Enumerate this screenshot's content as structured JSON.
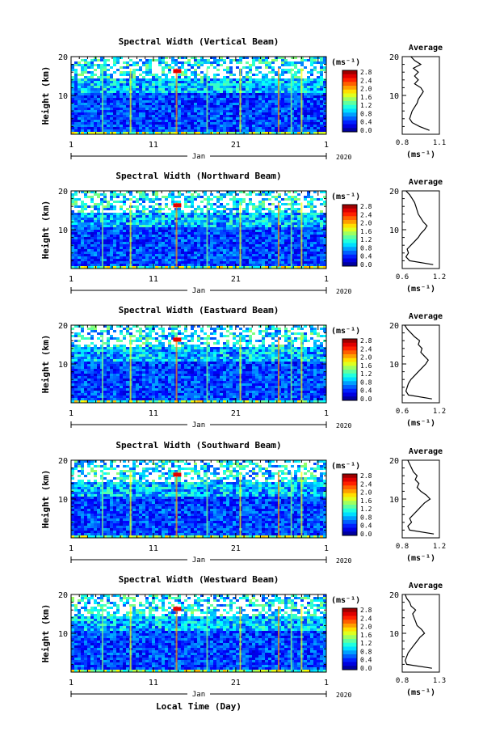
{
  "chart_data": [
    {
      "type": "heatmap",
      "title": "Spectral Width (Vertical Beam)",
      "ylabel": "Height (km)",
      "xlabel": "",
      "y_ticks": [
        "20",
        "10"
      ],
      "ylim": [
        0,
        20
      ],
      "x_ticks": [
        "1",
        "11",
        "21",
        "1"
      ],
      "month_label": "Jan",
      "year_label": "2020",
      "colorbar_label": "(ms⁻¹)",
      "colorbar_ticks": [
        "0.0",
        "0.4",
        "0.8",
        "1.2",
        "1.6",
        "2.0",
        "2.4",
        "2.8"
      ],
      "average": {
        "title": "Average",
        "xlabel": "(ms⁻¹)",
        "x_ticks": [
          "0.8",
          "1.1"
        ],
        "xlim": [
          0.8,
          1.1
        ],
        "y_ticks": [
          "20",
          "10"
        ],
        "profile_y": [
          1,
          2,
          3,
          4,
          5,
          6,
          7,
          8,
          9,
          10,
          11,
          12,
          13,
          14,
          15,
          16,
          17,
          18,
          19,
          20
        ],
        "profile_x": [
          1.02,
          0.94,
          0.88,
          0.86,
          0.87,
          0.88,
          0.9,
          0.92,
          0.93,
          0.95,
          0.97,
          0.95,
          0.9,
          0.93,
          0.9,
          0.93,
          0.89,
          0.95,
          0.9,
          0.87
        ]
      }
    },
    {
      "type": "heatmap",
      "title": "Spectral Width (Northward Beam)",
      "ylabel": "Height (km)",
      "xlabel": "",
      "y_ticks": [
        "20",
        "10"
      ],
      "ylim": [
        0,
        20
      ],
      "x_ticks": [
        "1",
        "11",
        "21",
        "1"
      ],
      "month_label": "Jan",
      "year_label": "2020",
      "colorbar_label": "(ms⁻¹)",
      "colorbar_ticks": [
        "0.0",
        "0.4",
        "0.8",
        "1.2",
        "1.6",
        "2.0",
        "2.4",
        "2.8"
      ],
      "average": {
        "title": "Average",
        "xlabel": "(ms⁻¹)",
        "x_ticks": [
          "0.6",
          "1.2"
        ],
        "xlim": [
          0.6,
          1.2
        ],
        "y_ticks": [
          "20",
          "10"
        ],
        "profile_y": [
          1,
          2,
          3,
          4,
          5,
          6,
          7,
          8,
          9,
          10,
          11,
          12,
          13,
          14,
          15,
          16,
          17,
          18,
          19,
          20
        ],
        "profile_x": [
          1.1,
          0.72,
          0.66,
          0.7,
          0.68,
          0.74,
          0.8,
          0.86,
          0.9,
          0.96,
          1.0,
          0.94,
          0.9,
          0.86,
          0.84,
          0.82,
          0.8,
          0.76,
          0.72,
          0.66
        ]
      }
    },
    {
      "type": "heatmap",
      "title": "Spectral Width (Eastward Beam)",
      "ylabel": "Height (km)",
      "xlabel": "",
      "y_ticks": [
        "20",
        "10"
      ],
      "ylim": [
        0,
        20
      ],
      "x_ticks": [
        "1",
        "11",
        "21",
        "1"
      ],
      "month_label": "Jan",
      "year_label": "2020",
      "colorbar_label": "(ms⁻¹)",
      "colorbar_ticks": [
        "0.0",
        "0.4",
        "0.8",
        "1.2",
        "1.6",
        "2.0",
        "2.4",
        "2.8"
      ],
      "average": {
        "title": "Average",
        "xlabel": "(ms⁻¹)",
        "x_ticks": [
          "0.6",
          "1.2"
        ],
        "xlim": [
          0.6,
          1.2
        ],
        "y_ticks": [
          "20",
          "10"
        ],
        "profile_y": [
          1,
          2,
          3,
          4,
          5,
          6,
          7,
          8,
          9,
          10,
          11,
          12,
          13,
          14,
          15,
          16,
          17,
          18,
          19,
          20
        ],
        "profile_x": [
          1.08,
          0.7,
          0.66,
          0.68,
          0.7,
          0.74,
          0.8,
          0.86,
          0.92,
          0.98,
          1.02,
          0.96,
          0.9,
          0.92,
          0.86,
          0.88,
          0.8,
          0.74,
          0.68,
          0.64
        ]
      }
    },
    {
      "type": "heatmap",
      "title": "Spectral Width (Southward Beam)",
      "ylabel": "Height (km)",
      "xlabel": "",
      "y_ticks": [
        "20",
        "10"
      ],
      "ylim": [
        0,
        20
      ],
      "x_ticks": [
        "1",
        "11",
        "21",
        "1"
      ],
      "month_label": "Jan",
      "year_label": "2020",
      "colorbar_label": "(ms⁻¹)",
      "colorbar_ticks": [
        "0.0",
        "0.4",
        "0.8",
        "1.2",
        "1.6",
        "2.0",
        "2.4",
        "2.8"
      ],
      "average": {
        "title": "Average",
        "xlabel": "(ms⁻¹)",
        "x_ticks": [
          "0.8",
          "1.2"
        ],
        "xlim": [
          0.8,
          1.2
        ],
        "y_ticks": [
          "20",
          "10"
        ],
        "profile_y": [
          1,
          2,
          3,
          4,
          5,
          6,
          7,
          8,
          9,
          10,
          11,
          12,
          13,
          14,
          15,
          16,
          17,
          18,
          19,
          20
        ],
        "profile_x": [
          1.14,
          0.88,
          0.86,
          0.9,
          0.88,
          0.92,
          0.96,
          1.0,
          1.04,
          1.1,
          1.06,
          1.0,
          0.96,
          0.98,
          0.94,
          0.96,
          0.92,
          0.9,
          0.88,
          0.86
        ]
      }
    },
    {
      "type": "heatmap",
      "title": "Spectral Width (Westward Beam)",
      "ylabel": "Height (km)",
      "xlabel": "Local Time (Day)",
      "y_ticks": [
        "20",
        "10"
      ],
      "ylim": [
        0,
        20
      ],
      "x_ticks": [
        "1",
        "11",
        "21",
        "1"
      ],
      "month_label": "Jan",
      "year_label": "2020",
      "colorbar_label": "(ms⁻¹)",
      "colorbar_ticks": [
        "0.0",
        "0.4",
        "0.8",
        "1.2",
        "1.6",
        "2.0",
        "2.4",
        "2.8"
      ],
      "average": {
        "title": "Average",
        "xlabel": "(ms⁻¹)",
        "x_ticks": [
          "0.8",
          "1.3"
        ],
        "xlim": [
          0.8,
          1.3
        ],
        "y_ticks": [
          "20",
          "10"
        ],
        "profile_y": [
          1,
          2,
          3,
          4,
          5,
          6,
          7,
          8,
          9,
          10,
          11,
          12,
          13,
          14,
          15,
          16,
          17,
          18,
          19,
          20
        ],
        "profile_x": [
          1.2,
          0.86,
          0.84,
          0.86,
          0.88,
          0.92,
          0.96,
          1.0,
          1.04,
          1.1,
          1.06,
          1.0,
          0.98,
          0.96,
          0.94,
          0.98,
          0.92,
          0.9,
          0.86,
          0.84
        ]
      }
    }
  ]
}
